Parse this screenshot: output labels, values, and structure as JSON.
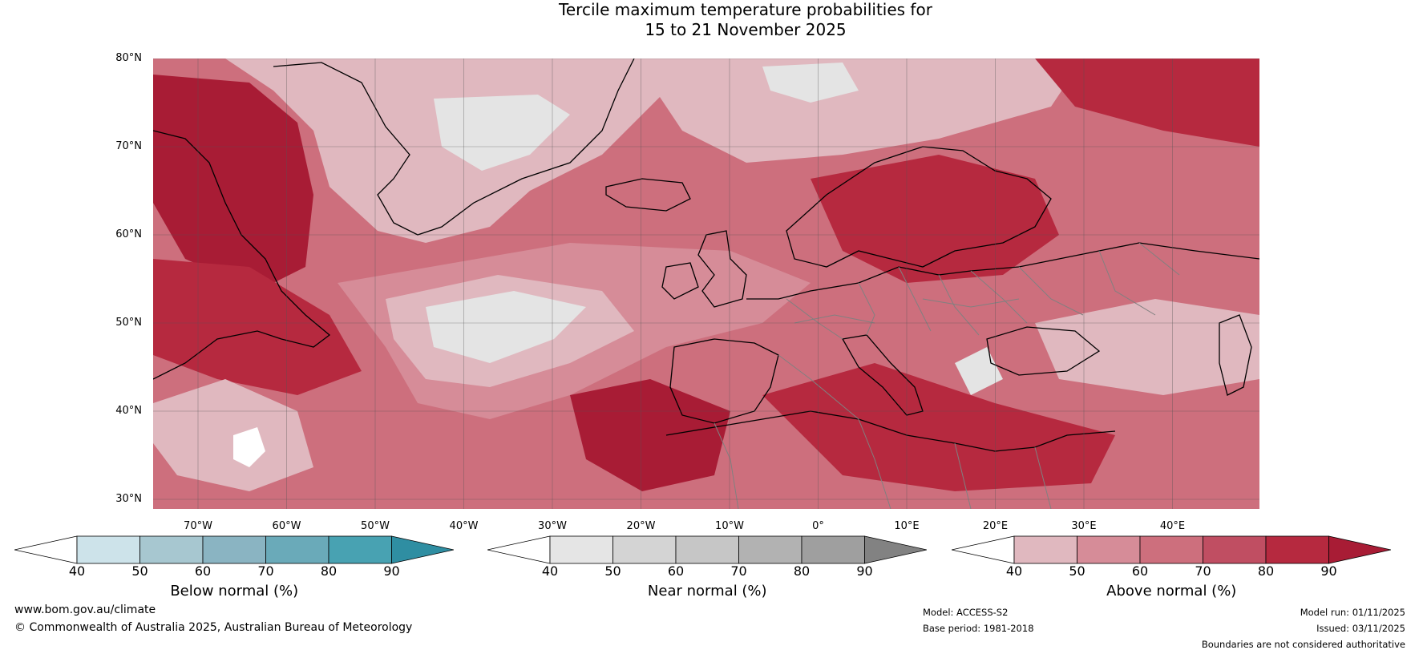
{
  "title": {
    "line1": "Tercile maximum temperature probabilities for",
    "line2": "15 to 21 November 2025"
  },
  "map": {
    "lat_labels": [
      "80°N",
      "70°N",
      "60°N",
      "50°N",
      "40°N",
      "30°N"
    ],
    "lon_labels": [
      "70°W",
      "60°W",
      "50°W",
      "40°W",
      "30°W",
      "20°W",
      "10°W",
      "0°",
      "10°E",
      "20°E",
      "30°E",
      "40°E"
    ],
    "fill_colors": {
      "above_40": "#e0b8bf",
      "above_50": "#d68c98",
      "above_60": "#cd6f7d",
      "above_70": "#c04e62",
      "above_80": "#b6293f",
      "above_90": "#a81c35",
      "near_40": "#e4e4e4",
      "near_50": "#d4d4d4",
      "white": "#ffffff",
      "coast": "#000000",
      "border": "#808080",
      "grid": "#555555"
    }
  },
  "colorbars": [
    {
      "label": "Below normal (%)",
      "ticks": [
        "40",
        "50",
        "60",
        "70",
        "80",
        "90"
      ],
      "colors": [
        "#ffffff",
        "#cde3ea",
        "#a7c7d0",
        "#8ab4c2",
        "#6aaab9",
        "#48a2b2",
        "#2f8ea2"
      ]
    },
    {
      "label": "Near normal (%)",
      "ticks": [
        "40",
        "50",
        "60",
        "70",
        "80",
        "90"
      ],
      "colors": [
        "#ffffff",
        "#e5e5e5",
        "#d4d4d4",
        "#c6c6c6",
        "#b2b2b2",
        "#9f9f9f",
        "#828282"
      ]
    },
    {
      "label": "Above normal (%)",
      "ticks": [
        "40",
        "50",
        "60",
        "70",
        "80",
        "90"
      ],
      "colors": [
        "#ffffff",
        "#e0b8bf",
        "#d68c98",
        "#cd6f7d",
        "#c04e62",
        "#b6293f",
        "#a81c35"
      ]
    }
  ],
  "footer": {
    "website": "www.bom.gov.au/climate",
    "copyright": "© Commonwealth of Australia 2025, Australian Bureau of Meteorology",
    "model": "Model: ACCESS-S2",
    "base_period": "Base period: 1981-2018",
    "model_run": "Model run: 01/11/2025",
    "issued": "Issued: 03/11/2025",
    "disclaimer": "Boundaries are not considered authoritative"
  }
}
